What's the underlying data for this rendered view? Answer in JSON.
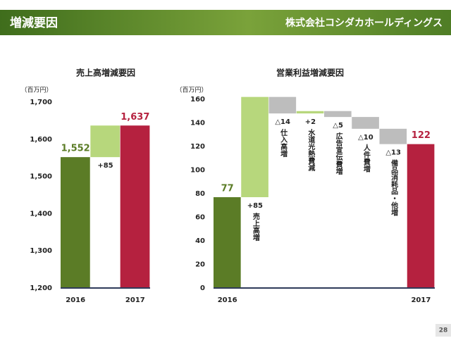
{
  "header": {
    "title": "増減要因",
    "company": "株式会社コシダカホールディングス"
  },
  "page_number": "28",
  "chart_data": [
    {
      "type": "waterfall",
      "title": "売上高増減要因",
      "unit": "（百万円）",
      "categories": [
        "2016",
        null,
        "2017"
      ],
      "measures": [
        "absolute",
        "relative",
        "total"
      ],
      "values": [
        1552,
        85,
        1637
      ],
      "value_labels": [
        "1,552",
        "+85",
        "1,637"
      ],
      "colors": [
        "#5b7c26",
        "#b7d77c",
        "#b5213f"
      ],
      "ylim": [
        1200,
        1700
      ],
      "yticks": [
        {
          "value": 1200,
          "label": "1,200"
        },
        {
          "value": 1300,
          "label": "1,300"
        },
        {
          "value": 1400,
          "label": "1,400"
        },
        {
          "value": 1500,
          "label": "1,500"
        },
        {
          "value": 1600,
          "label": "1,600"
        },
        {
          "value": 1700,
          "label": "1,700"
        }
      ]
    },
    {
      "type": "waterfall",
      "title": "営業利益増減要因",
      "unit": "（百万円）",
      "categories": [
        "2016",
        null,
        null,
        null,
        null,
        null,
        null,
        "2017"
      ],
      "measures": [
        "absolute",
        "relative",
        "relative",
        "relative",
        "relative",
        "relative",
        "relative",
        "total"
      ],
      "values": [
        77,
        85,
        -14,
        2,
        -5,
        -10,
        -13,
        122
      ],
      "value_labels": [
        "77",
        "+85",
        "△14",
        "+2",
        "△5",
        "△10",
        "△13",
        "122"
      ],
      "notes": [
        null,
        "売上高増",
        "仕入高増",
        "水道光熱費減",
        "広告宣伝費増",
        "人件費増",
        "備品消耗品・他増",
        null
      ],
      "colors": [
        "#5b7c26",
        "#b7d77c",
        "#bdbdbd",
        "#b7d77c",
        "#bdbdbd",
        "#bdbdbd",
        "#bdbdbd",
        "#b5213f"
      ],
      "ylim": [
        0,
        160
      ],
      "yticks": [
        0,
        20,
        40,
        60,
        80,
        100,
        120,
        140,
        160
      ]
    }
  ]
}
